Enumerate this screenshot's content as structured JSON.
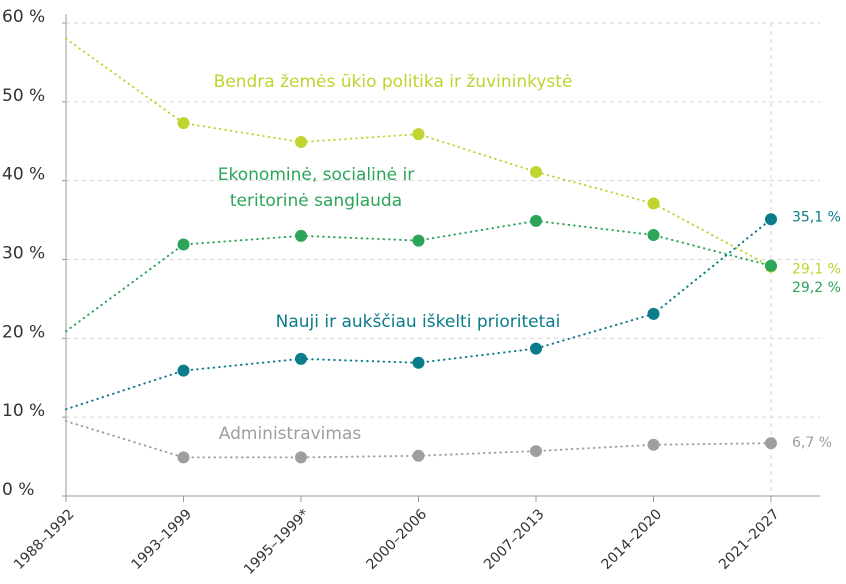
{
  "chart_data": {
    "type": "line",
    "categories": [
      "1988–1992",
      "1993–1999",
      "1995–1999*",
      "2000–2006",
      "2007–2013",
      "2014–2020",
      "2021–2027"
    ],
    "series": [
      {
        "name": "Bendra žemės ūkio politika ir žuvininkystė",
        "color": "#c1d32f",
        "values": [
          58,
          47.3,
          44.9,
          45.9,
          41.1,
          37.1,
          29.1
        ],
        "value_labels": [
          null,
          null,
          null,
          null,
          null,
          null,
          "29,1 %"
        ]
      },
      {
        "name": "Ekonominė, socialinė ir teritorinė sanglauda",
        "color": "#2ca55a",
        "values": [
          20.9,
          31.9,
          33.0,
          32.4,
          34.9,
          33.1,
          29.2
        ],
        "value_labels": [
          null,
          null,
          null,
          null,
          null,
          null,
          "29,2 %"
        ]
      },
      {
        "name": "Nauji ir aukščiau iškelti prioritetai",
        "color": "#0a7c8a",
        "values": [
          11.0,
          15.9,
          17.4,
          16.9,
          18.7,
          23.1,
          35.1
        ],
        "value_labels": [
          null,
          null,
          null,
          null,
          null,
          null,
          "35,1 %"
        ]
      },
      {
        "name": "Administravimas",
        "color": "#9e9e9e",
        "values": [
          9.5,
          4.9,
          4.9,
          5.1,
          5.7,
          6.5,
          6.7
        ],
        "value_labels": [
          null,
          null,
          null,
          null,
          null,
          null,
          "6,7 %"
        ]
      }
    ],
    "ylim": [
      0,
      60
    ],
    "yticks": [
      {
        "value": 0,
        "label": "0 %"
      },
      {
        "value": 10,
        "label": "10 %"
      },
      {
        "value": 20,
        "label": "20 %"
      },
      {
        "value": 30,
        "label": "30 %"
      },
      {
        "value": 40,
        "label": "40 %"
      },
      {
        "value": 50,
        "label": "50 %"
      },
      {
        "value": 60,
        "label": "60 %"
      }
    ],
    "grid": true
  }
}
